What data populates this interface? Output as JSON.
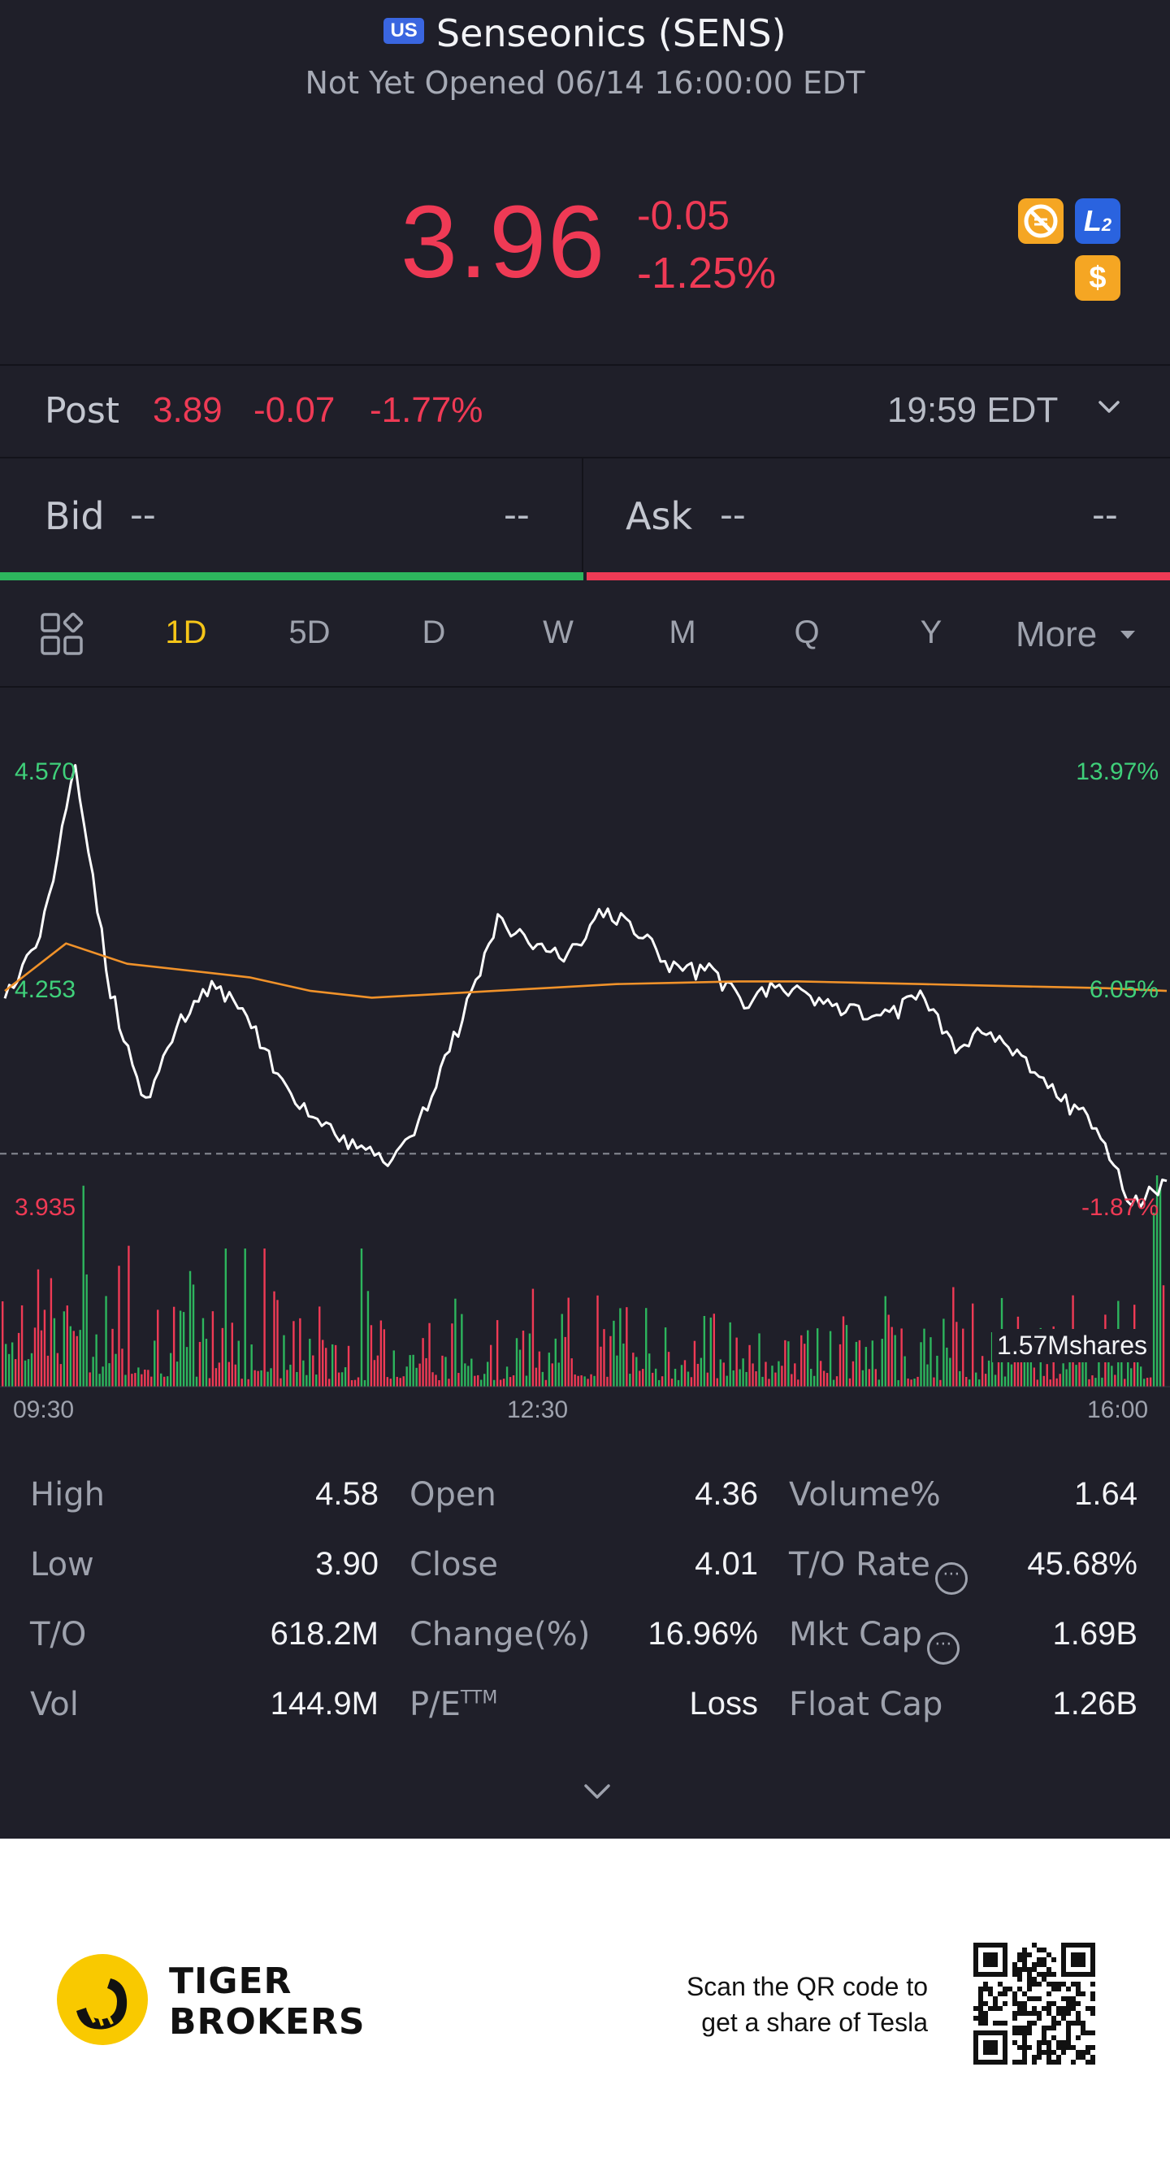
{
  "header": {
    "market_badge": "US",
    "stock_name": "Senseonics (SENS)",
    "status": "Not Yet Opened 06/14 16:00:00 EDT",
    "price": "3.96",
    "change": "-0.05",
    "change_pct": "-1.25%",
    "icons": [
      "no-short-icon",
      "level2-icon",
      "dollar-icon"
    ],
    "level2_text": "L",
    "level2_sub": "2",
    "dollar_text": "$"
  },
  "post": {
    "label": "Post",
    "price": "3.89",
    "change": "-0.07",
    "change_pct": "-1.77%",
    "time": "19:59 EDT"
  },
  "bid_ask": {
    "bid_label": "Bid",
    "bid_price": "--",
    "bid_size": "--",
    "ask_label": "Ask",
    "ask_price": "--",
    "ask_size": "--"
  },
  "tabs": {
    "items": [
      "1D",
      "5D",
      "D",
      "W",
      "M",
      "Q",
      "Y"
    ],
    "active": "1D",
    "more": "More"
  },
  "chart": {
    "y_high": "4.570",
    "y_mid": "4.253",
    "y_low": "3.935",
    "pct_high": "13.97%",
    "pct_mid": "6.05%",
    "pct_low": "-1.87%",
    "volume_label": "1.57Mshares",
    "time_start": "09:30",
    "time_mid": "12:30",
    "time_end": "16:00"
  },
  "chart_data": {
    "type": "line",
    "x_labels": [
      "09:30",
      "12:30",
      "16:00"
    ],
    "y_axis_left": [
      4.57,
      4.253,
      3.935
    ],
    "y_axis_right": [
      "13.97%",
      "6.05%",
      "-1.87%"
    ],
    "prev_close": 4.01,
    "series": [
      {
        "name": "price",
        "color": "#ffffff",
        "values": [
          4.24,
          4.33,
          4.58,
          4.25,
          4.08,
          4.21,
          4.26,
          4.2,
          4.1,
          4.06,
          4.02,
          3.99,
          4.08,
          4.21,
          4.35,
          4.32,
          4.3,
          4.37,
          4.34,
          4.28,
          4.28,
          4.23,
          4.26,
          4.24,
          4.22,
          4.21,
          4.24,
          4.17,
          4.19,
          4.15,
          4.09,
          4.05,
          3.93,
          3.97
        ]
      },
      {
        "name": "avg",
        "color": "#f0922a",
        "values": [
          4.25,
          4.32,
          4.29,
          4.28,
          4.27,
          4.25,
          4.24,
          4.245,
          4.25,
          4.255,
          4.26,
          4.262,
          4.264,
          4.264,
          4.262,
          4.26,
          4.258,
          4.256,
          4.254,
          4.25
        ]
      }
    ],
    "volume_max": "1.57Mshares"
  },
  "stats": {
    "rows": [
      [
        {
          "label": "High",
          "value": "4.58"
        },
        {
          "label": "Open",
          "value": "4.36"
        },
        {
          "label": "Volume%",
          "value": "1.64"
        }
      ],
      [
        {
          "label": "Low",
          "value": "3.90"
        },
        {
          "label": "Close",
          "value": "4.01"
        },
        {
          "label": "T/O Rate",
          "value": "45.68%"
        }
      ],
      [
        {
          "label": "T/O",
          "value": "618.2M"
        },
        {
          "label": "Change(%)",
          "value": "16.96%"
        },
        {
          "label": "Mkt Cap",
          "value": "1.69B"
        }
      ],
      [
        {
          "label": "Vol",
          "value": "144.9M"
        },
        {
          "label": "P/E",
          "value": "Loss"
        },
        {
          "label": "Float Cap",
          "value": "1.26B"
        }
      ]
    ],
    "pe_sup": "TTM",
    "info_glyph": "···"
  },
  "footer": {
    "brand_line1": "TIGER",
    "brand_line2": "BROKERS",
    "scan_line1": "Scan the QR code to",
    "scan_line2": "get a share of Tesla"
  },
  "colors": {
    "up": "#2db55d",
    "down": "#ef3a55",
    "accent": "#f5c518",
    "avg_line": "#f0922a",
    "background": "#1f1f29"
  }
}
